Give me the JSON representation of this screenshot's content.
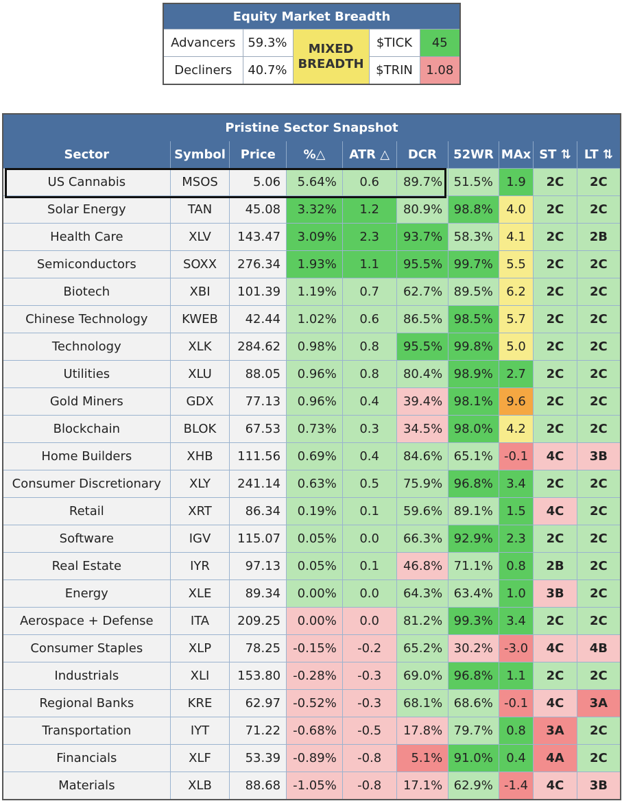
{
  "breadth": {
    "title": "Equity Market Breadth",
    "advancers_label": "Advancers",
    "advancers_value": "59.3%",
    "decliners_label": "Decliners",
    "decliners_value": "40.7%",
    "status_line1": "MIXED",
    "status_line2": "BREADTH",
    "tick_label": "$TICK",
    "tick_value": "45",
    "trin_label": "$TRIN",
    "trin_value": "1.08"
  },
  "sector": {
    "title": "Pristine Sector Snapshot",
    "headers": [
      "Sector",
      "Symbol",
      "Price",
      "%△",
      "ATR △",
      "DCR",
      "52WR",
      "MAx",
      "ST ⇅",
      "LT ⇅"
    ],
    "rows": [
      {
        "sector": "US Cannabis",
        "symbol": "MSOS",
        "price": "5.06",
        "pct": "5.64%",
        "pct_c": "c-lg",
        "atr": "0.6",
        "atr_c": "c-lg",
        "dcr": "89.7%",
        "dcr_c": "c-lg",
        "wr": "51.5%",
        "wr_c": "c-lg",
        "max": "1.9",
        "max_c": "c-g",
        "st": "2C",
        "st_c": "c-lg",
        "lt": "2C",
        "lt_c": "c-lg"
      },
      {
        "sector": "Solar Energy",
        "symbol": "TAN",
        "price": "45.08",
        "pct": "3.32%",
        "pct_c": "c-g",
        "atr": "1.2",
        "atr_c": "c-g",
        "dcr": "80.9%",
        "dcr_c": "c-lg",
        "wr": "98.8%",
        "wr_c": "c-g",
        "max": "4.0",
        "max_c": "c-y",
        "st": "2C",
        "st_c": "c-lg",
        "lt": "2C",
        "lt_c": "c-lg"
      },
      {
        "sector": "Health Care",
        "symbol": "XLV",
        "price": "143.47",
        "pct": "3.09%",
        "pct_c": "c-g",
        "atr": "2.3",
        "atr_c": "c-g",
        "dcr": "93.7%",
        "dcr_c": "c-g",
        "wr": "58.3%",
        "wr_c": "c-lg",
        "max": "4.1",
        "max_c": "c-y",
        "st": "2C",
        "st_c": "c-lg",
        "lt": "2B",
        "lt_c": "c-lg"
      },
      {
        "sector": "Semiconductors",
        "symbol": "SOXX",
        "price": "276.34",
        "pct": "1.93%",
        "pct_c": "c-g",
        "atr": "1.1",
        "atr_c": "c-g",
        "dcr": "95.5%",
        "dcr_c": "c-g",
        "wr": "99.7%",
        "wr_c": "c-g",
        "max": "5.5",
        "max_c": "c-y",
        "st": "2C",
        "st_c": "c-lg",
        "lt": "2C",
        "lt_c": "c-lg"
      },
      {
        "sector": "Biotech",
        "symbol": "XBI",
        "price": "101.39",
        "pct": "1.19%",
        "pct_c": "c-lg",
        "atr": "0.7",
        "atr_c": "c-lg",
        "dcr": "62.7%",
        "dcr_c": "c-lg",
        "wr": "89.5%",
        "wr_c": "c-lg",
        "max": "6.2",
        "max_c": "c-y",
        "st": "2C",
        "st_c": "c-lg",
        "lt": "2C",
        "lt_c": "c-lg"
      },
      {
        "sector": "Chinese Technology",
        "symbol": "KWEB",
        "price": "42.44",
        "pct": "1.02%",
        "pct_c": "c-lg",
        "atr": "0.6",
        "atr_c": "c-lg",
        "dcr": "86.5%",
        "dcr_c": "c-lg",
        "wr": "98.5%",
        "wr_c": "c-g",
        "max": "5.7",
        "max_c": "c-y",
        "st": "2C",
        "st_c": "c-lg",
        "lt": "2C",
        "lt_c": "c-lg"
      },
      {
        "sector": "Technology",
        "symbol": "XLK",
        "price": "284.62",
        "pct": "0.98%",
        "pct_c": "c-lg",
        "atr": "0.8",
        "atr_c": "c-lg",
        "dcr": "95.5%",
        "dcr_c": "c-g",
        "wr": "99.8%",
        "wr_c": "c-g",
        "max": "5.0",
        "max_c": "c-y",
        "st": "2C",
        "st_c": "c-lg",
        "lt": "2C",
        "lt_c": "c-lg"
      },
      {
        "sector": "Utilities",
        "symbol": "XLU",
        "price": "88.05",
        "pct": "0.96%",
        "pct_c": "c-lg",
        "atr": "0.8",
        "atr_c": "c-lg",
        "dcr": "80.4%",
        "dcr_c": "c-lg",
        "wr": "98.9%",
        "wr_c": "c-g",
        "max": "2.7",
        "max_c": "c-g",
        "st": "2C",
        "st_c": "c-lg",
        "lt": "2C",
        "lt_c": "c-lg"
      },
      {
        "sector": "Gold Miners",
        "symbol": "GDX",
        "price": "77.13",
        "pct": "0.96%",
        "pct_c": "c-lg",
        "atr": "0.4",
        "atr_c": "c-lg",
        "dcr": "39.4%",
        "dcr_c": "c-lr",
        "wr": "98.1%",
        "wr_c": "c-g",
        "max": "9.6",
        "max_c": "c-o",
        "st": "2C",
        "st_c": "c-lg",
        "lt": "2C",
        "lt_c": "c-lg"
      },
      {
        "sector": "Blockchain",
        "symbol": "BLOK",
        "price": "67.53",
        "pct": "0.73%",
        "pct_c": "c-lg",
        "atr": "0.3",
        "atr_c": "c-lg",
        "dcr": "34.5%",
        "dcr_c": "c-lr",
        "wr": "98.0%",
        "wr_c": "c-g",
        "max": "4.2",
        "max_c": "c-y",
        "st": "2C",
        "st_c": "c-lg",
        "lt": "2C",
        "lt_c": "c-lg"
      },
      {
        "sector": "Home Builders",
        "symbol": "XHB",
        "price": "111.56",
        "pct": "0.69%",
        "pct_c": "c-lg",
        "atr": "0.4",
        "atr_c": "c-lg",
        "dcr": "84.6%",
        "dcr_c": "c-lg",
        "wr": "65.1%",
        "wr_c": "c-lg",
        "max": "-0.1",
        "max_c": "c-r",
        "st": "4C",
        "st_c": "c-lr",
        "lt": "3B",
        "lt_c": "c-lr"
      },
      {
        "sector": "Consumer Discretionary",
        "symbol": "XLY",
        "price": "241.14",
        "pct": "0.63%",
        "pct_c": "c-lg",
        "atr": "0.5",
        "atr_c": "c-lg",
        "dcr": "75.9%",
        "dcr_c": "c-lg",
        "wr": "96.8%",
        "wr_c": "c-g",
        "max": "3.4",
        "max_c": "c-g",
        "st": "2C",
        "st_c": "c-lg",
        "lt": "2C",
        "lt_c": "c-lg"
      },
      {
        "sector": "Retail",
        "symbol": "XRT",
        "price": "86.34",
        "pct": "0.19%",
        "pct_c": "c-lg",
        "atr": "0.1",
        "atr_c": "c-lg",
        "dcr": "59.6%",
        "dcr_c": "c-lg",
        "wr": "89.1%",
        "wr_c": "c-lg",
        "max": "1.5",
        "max_c": "c-g",
        "st": "4C",
        "st_c": "c-lr",
        "lt": "2C",
        "lt_c": "c-lg"
      },
      {
        "sector": "Software",
        "symbol": "IGV",
        "price": "115.07",
        "pct": "0.05%",
        "pct_c": "c-lg",
        "atr": "0.0",
        "atr_c": "c-lg",
        "dcr": "66.3%",
        "dcr_c": "c-lg",
        "wr": "92.9%",
        "wr_c": "c-g",
        "max": "2.3",
        "max_c": "c-g",
        "st": "2C",
        "st_c": "c-lg",
        "lt": "2C",
        "lt_c": "c-lg"
      },
      {
        "sector": "Real Estate",
        "symbol": "IYR",
        "price": "97.13",
        "pct": "0.05%",
        "pct_c": "c-lg",
        "atr": "0.1",
        "atr_c": "c-lg",
        "dcr": "46.8%",
        "dcr_c": "c-lr",
        "wr": "71.1%",
        "wr_c": "c-lg",
        "max": "0.8",
        "max_c": "c-g",
        "st": "2B",
        "st_c": "c-lg",
        "lt": "2C",
        "lt_c": "c-lg"
      },
      {
        "sector": "Energy",
        "symbol": "XLE",
        "price": "89.34",
        "pct": "0.00%",
        "pct_c": "c-lg",
        "atr": "0.0",
        "atr_c": "c-lg",
        "dcr": "64.3%",
        "dcr_c": "c-lg",
        "wr": "63.4%",
        "wr_c": "c-lg",
        "max": "1.0",
        "max_c": "c-g",
        "st": "3B",
        "st_c": "c-lr",
        "lt": "2C",
        "lt_c": "c-lg"
      },
      {
        "sector": "Aerospace + Defense",
        "symbol": "ITA",
        "price": "209.25",
        "pct": "0.00%",
        "pct_c": "c-lr",
        "atr": "0.0",
        "atr_c": "c-lr",
        "dcr": "81.2%",
        "dcr_c": "c-lg",
        "wr": "99.3%",
        "wr_c": "c-g",
        "max": "3.4",
        "max_c": "c-g",
        "st": "2C",
        "st_c": "c-lg",
        "lt": "2C",
        "lt_c": "c-lg"
      },
      {
        "sector": "Consumer Staples",
        "symbol": "XLP",
        "price": "78.25",
        "pct": "-0.15%",
        "pct_c": "c-lr",
        "atr": "-0.2",
        "atr_c": "c-lr",
        "dcr": "65.2%",
        "dcr_c": "c-lg",
        "wr": "30.2%",
        "wr_c": "c-lr",
        "max": "-3.0",
        "max_c": "c-r",
        "st": "4C",
        "st_c": "c-lr",
        "lt": "4B",
        "lt_c": "c-lr"
      },
      {
        "sector": "Industrials",
        "symbol": "XLI",
        "price": "153.80",
        "pct": "-0.28%",
        "pct_c": "c-lr",
        "atr": "-0.3",
        "atr_c": "c-lr",
        "dcr": "69.0%",
        "dcr_c": "c-lg",
        "wr": "96.8%",
        "wr_c": "c-g",
        "max": "1.1",
        "max_c": "c-g",
        "st": "2C",
        "st_c": "c-lg",
        "lt": "2C",
        "lt_c": "c-lg"
      },
      {
        "sector": "Regional Banks",
        "symbol": "KRE",
        "price": "62.97",
        "pct": "-0.52%",
        "pct_c": "c-lr",
        "atr": "-0.3",
        "atr_c": "c-lr",
        "dcr": "68.1%",
        "dcr_c": "c-lg",
        "wr": "68.6%",
        "wr_c": "c-lg",
        "max": "-0.1",
        "max_c": "c-r",
        "st": "4C",
        "st_c": "c-lr",
        "lt": "3A",
        "lt_c": "c-r"
      },
      {
        "sector": "Transportation",
        "symbol": "IYT",
        "price": "71.22",
        "pct": "-0.68%",
        "pct_c": "c-lr",
        "atr": "-0.5",
        "atr_c": "c-lr",
        "dcr": "17.8%",
        "dcr_c": "c-lr",
        "wr": "79.7%",
        "wr_c": "c-lg",
        "max": "0.8",
        "max_c": "c-g",
        "st": "3A",
        "st_c": "c-r",
        "lt": "2C",
        "lt_c": "c-lg"
      },
      {
        "sector": "Financials",
        "symbol": "XLF",
        "price": "53.39",
        "pct": "-0.89%",
        "pct_c": "c-lr",
        "atr": "-0.8",
        "atr_c": "c-lr",
        "dcr": "5.1%",
        "dcr_c": "c-r",
        "wr": "91.0%",
        "wr_c": "c-g",
        "max": "0.4",
        "max_c": "c-g",
        "st": "4A",
        "st_c": "c-r",
        "lt": "2C",
        "lt_c": "c-lg"
      },
      {
        "sector": "Materials",
        "symbol": "XLB",
        "price": "88.68",
        "pct": "-1.05%",
        "pct_c": "c-lr",
        "atr": "-0.8",
        "atr_c": "c-lr",
        "dcr": "17.1%",
        "dcr_c": "c-lr",
        "wr": "62.9%",
        "wr_c": "c-lg",
        "max": "-1.4",
        "max_c": "c-r",
        "st": "4C",
        "st_c": "c-lr",
        "lt": "3B",
        "lt_c": "c-lr"
      }
    ]
  }
}
